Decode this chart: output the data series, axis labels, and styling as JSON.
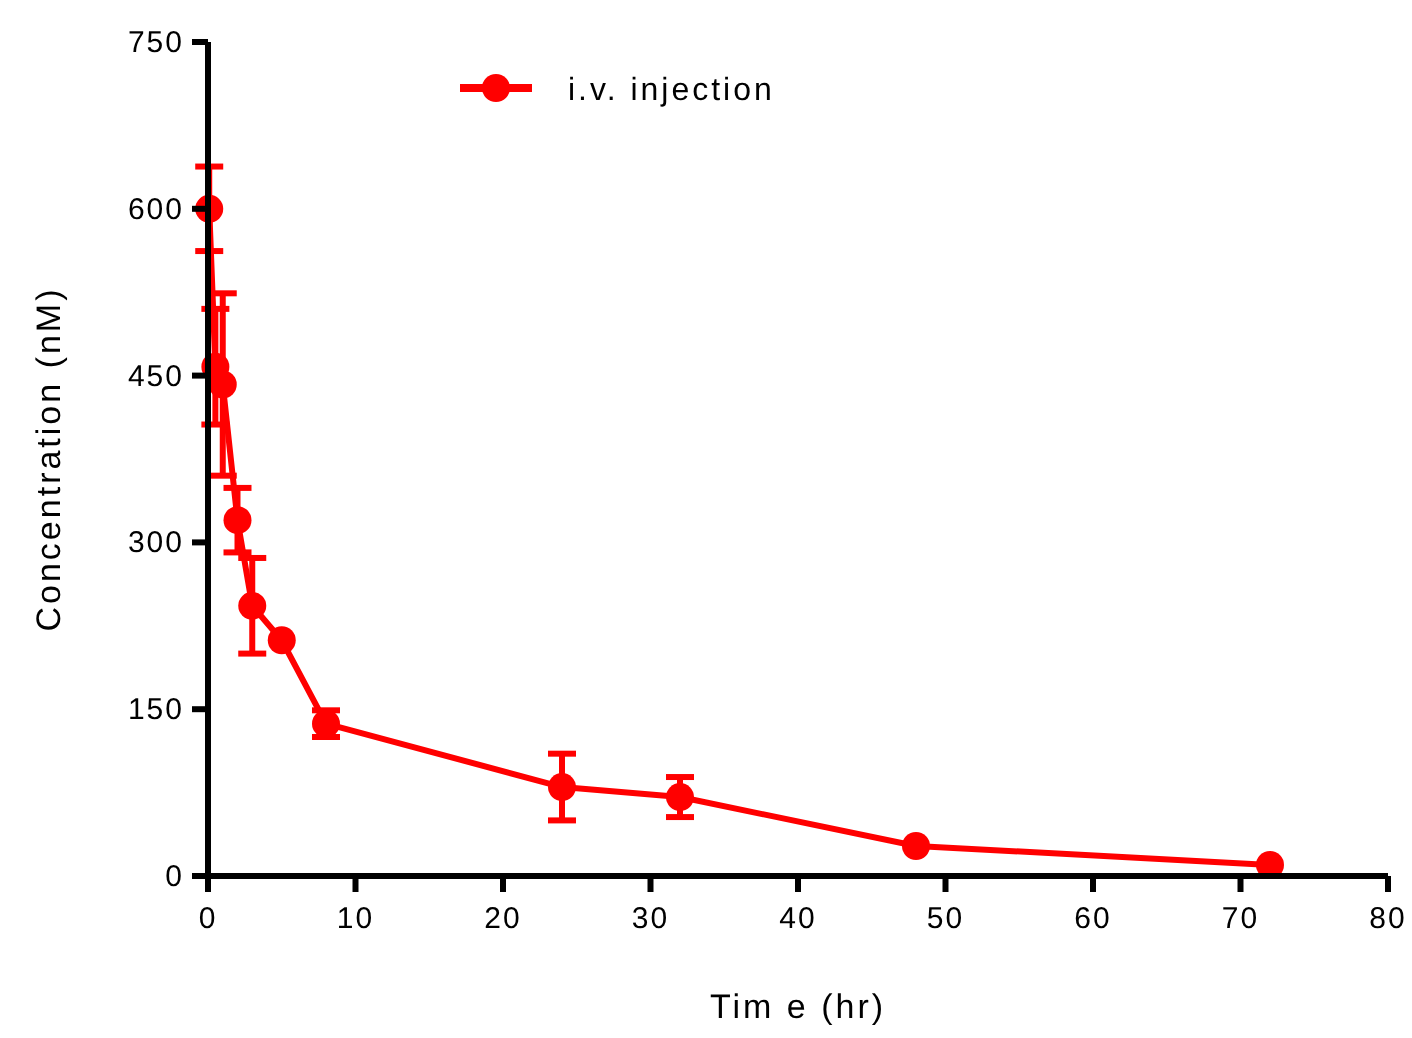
{
  "chart_data": {
    "type": "line",
    "xlabel": "Tim e (hr)",
    "ylabel": "Concentration (nM)",
    "x": [
      0.083,
      0.5,
      1,
      2,
      3,
      5,
      8,
      24,
      32,
      48,
      72
    ],
    "series": [
      {
        "name": "i.v. injection",
        "color": "#ff0000",
        "values": [
          600,
          458,
          442,
          320,
          243,
          212,
          137,
          80,
          71,
          27,
          10
        ],
        "errors": [
          38,
          52,
          82,
          29,
          43,
          null,
          12,
          30,
          18,
          null,
          null
        ]
      }
    ],
    "xlim": [
      0,
      80
    ],
    "xticks": [
      0,
      10,
      20,
      30,
      40,
      50,
      60,
      70,
      80
    ],
    "ylim": [
      0,
      750
    ],
    "yticks": [
      0,
      150,
      300,
      450,
      600,
      750
    ],
    "grid": false,
    "legend": "top",
    "marker": "circle",
    "line_style": "solid"
  }
}
